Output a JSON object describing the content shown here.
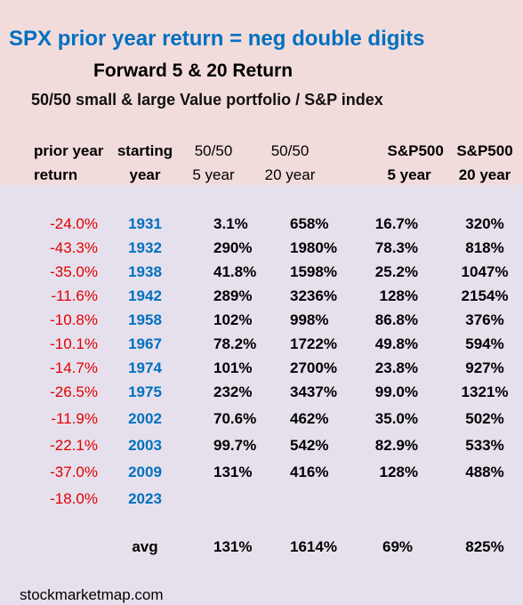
{
  "header": {
    "title": "SPX prior year return = neg double digits",
    "subtitle": "Forward 5 & 20  Return",
    "description": "50/50 small & large Value portfolio / S&P index"
  },
  "table": {
    "columns": [
      [
        "prior year",
        "return"
      ],
      [
        "starting",
        "year"
      ],
      [
        "50/50",
        "5 year"
      ],
      [
        "50/50",
        "20 year"
      ],
      [
        "S&P500",
        "5 year"
      ],
      [
        "S&P500",
        "20 year"
      ]
    ],
    "rows": [
      [
        "-24.0%",
        "1931",
        "3.1%",
        "658%",
        "16.7%",
        "320%"
      ],
      [
        "-43.3%",
        "1932",
        "290%",
        "1980%",
        "78.3%",
        "818%"
      ],
      [
        "-35.0%",
        "1938",
        "41.8%",
        "1598%",
        "25.2%",
        "1047%"
      ],
      [
        "-11.6%",
        "1942",
        "289%",
        "3236%",
        "128%",
        "2154%"
      ],
      [
        "-10.8%",
        "1958",
        "102%",
        "998%",
        "86.8%",
        "376%"
      ],
      [
        "-10.1%",
        "1967",
        "78.2%",
        "1722%",
        "49.8%",
        "594%"
      ],
      [
        "-14.7%",
        "1974",
        "101%",
        "2700%",
        "23.8%",
        "927%"
      ],
      [
        "-26.5%",
        "1975",
        "232%",
        "3437%",
        "99.0%",
        "1321%"
      ],
      [
        "-11.9%",
        "2002",
        "70.6%",
        "462%",
        "35.0%",
        "502%"
      ],
      [
        "-22.1%",
        "2003",
        "99.7%",
        "542%",
        "82.9%",
        "533%"
      ],
      [
        "-37.0%",
        "2009",
        "131%",
        "416%",
        "128%",
        "488%"
      ],
      [
        "-18.0%",
        "2023"
      ]
    ],
    "average": {
      "label": "avg",
      "values": [
        "131%",
        "1614%",
        "69%",
        "825%"
      ]
    }
  },
  "footer": "stockmarketmap.com"
}
